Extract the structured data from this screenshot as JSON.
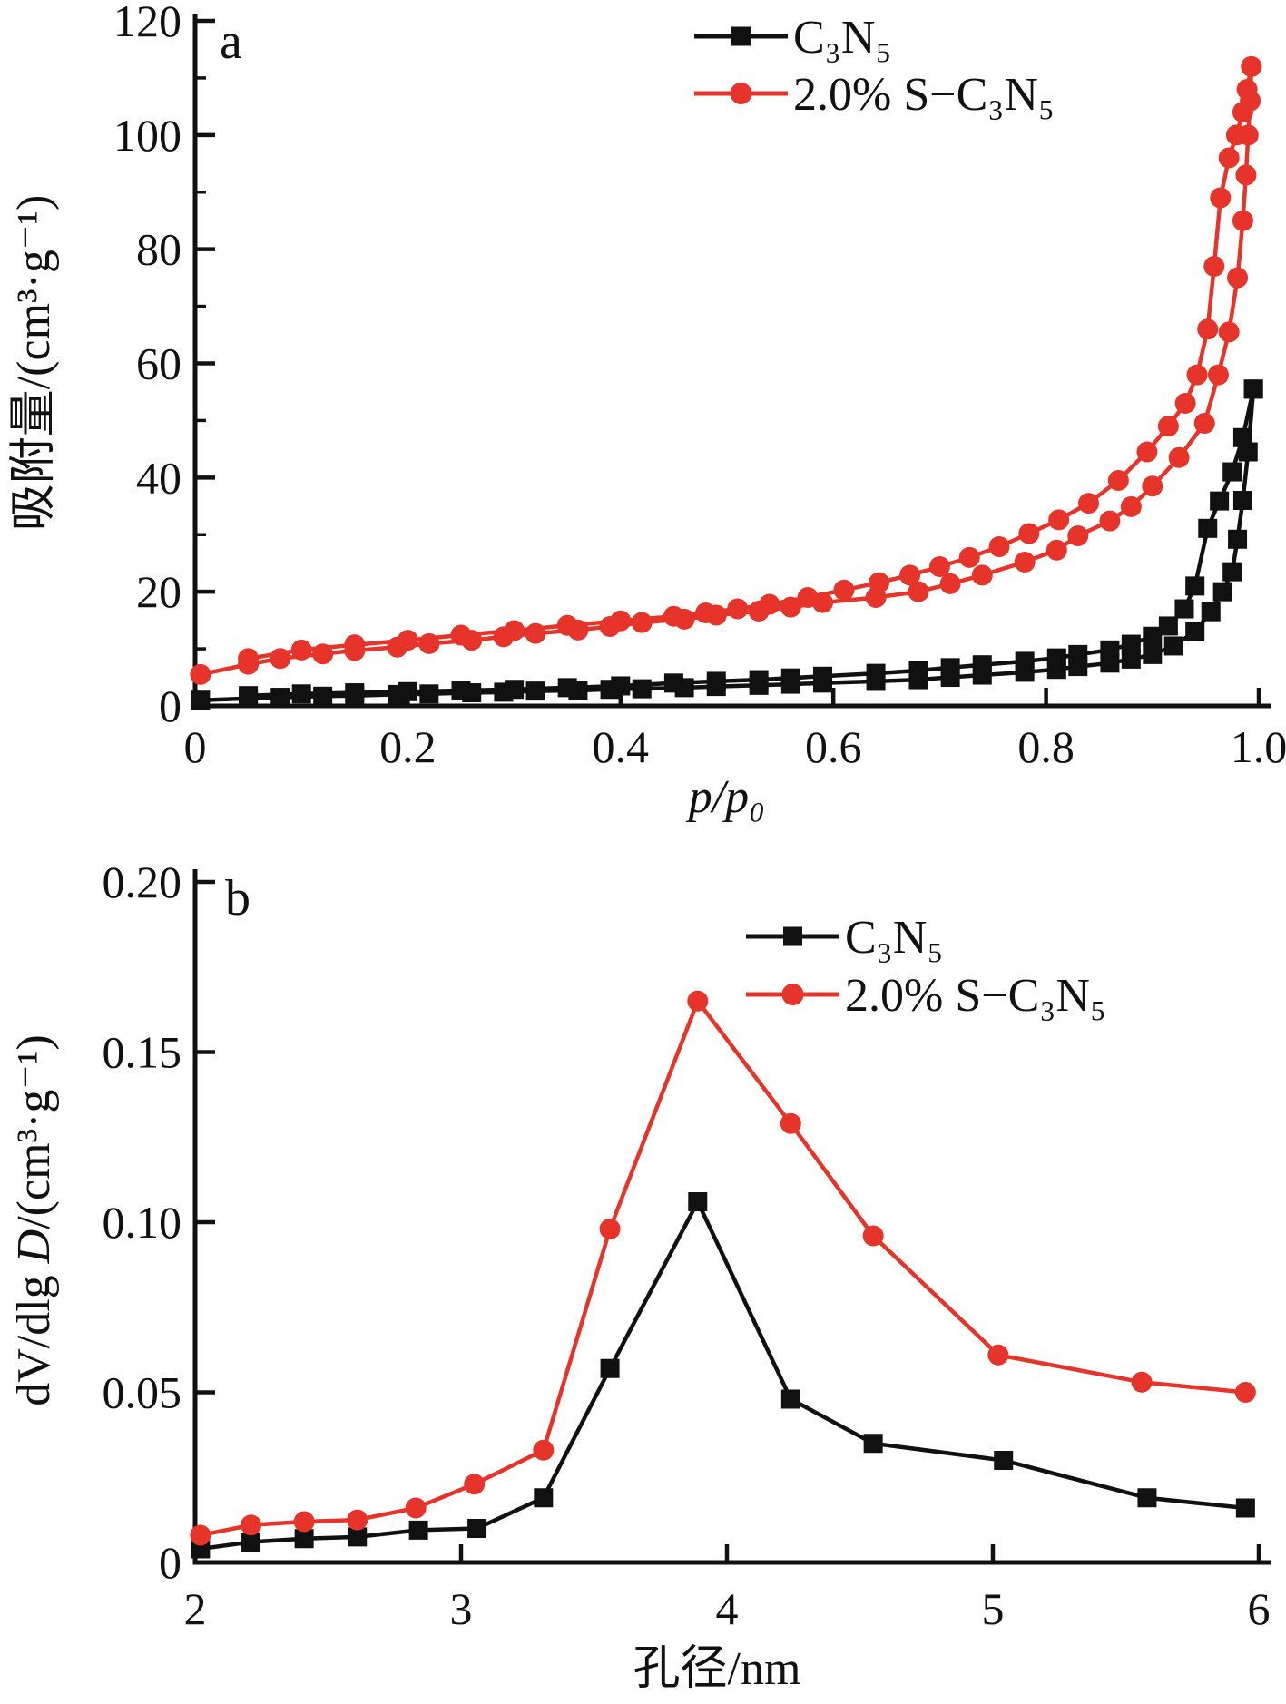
{
  "figure": {
    "background": "#ffffff",
    "black_color": "#111111",
    "red_color": "#e6342a",
    "panel_a_letter": "a",
    "panel_b_letter": "b",
    "legend": {
      "c3n5_label": "C₃N₅",
      "s_c3n5_label": "2.0% S−C₃N₅"
    }
  },
  "chart_data": [
    {
      "id": "panel-a",
      "type": "line",
      "panel_label": "a",
      "xlabel": "p/p₀",
      "ylabel": "吸附量/(cm³·g⁻¹)",
      "xlim": [
        0,
        1.0
      ],
      "ylim": [
        0,
        120
      ],
      "grid": false,
      "legend_position": "top-right",
      "xticks": [
        0,
        0.2,
        0.4,
        0.6,
        0.8,
        1.0
      ],
      "xtick_labels": [
        "0",
        "0.2",
        "0.4",
        "0.6",
        "0.8",
        "1.0"
      ],
      "yticks": [
        0,
        20,
        40,
        60,
        80,
        100,
        120
      ],
      "ytick_labels": [
        "0",
        "20",
        "40",
        "60",
        "80",
        "100",
        "120"
      ],
      "yminor": [
        10,
        30,
        50,
        70,
        90,
        110
      ],
      "series": [
        {
          "name": "C₃N₅",
          "color": "#111111",
          "marker": "square",
          "adsorption": [
            [
              0.005,
              1.0
            ],
            [
              0.05,
              1.3
            ],
            [
              0.08,
              1.5
            ],
            [
              0.12,
              1.7
            ],
            [
              0.15,
              1.8
            ],
            [
              0.19,
              2.0
            ],
            [
              0.22,
              2.1
            ],
            [
              0.26,
              2.3
            ],
            [
              0.29,
              2.4
            ],
            [
              0.32,
              2.6
            ],
            [
              0.36,
              2.7
            ],
            [
              0.39,
              2.9
            ],
            [
              0.42,
              3.0
            ],
            [
              0.46,
              3.2
            ],
            [
              0.49,
              3.4
            ],
            [
              0.53,
              3.6
            ],
            [
              0.56,
              3.8
            ],
            [
              0.59,
              4.0
            ],
            [
              0.64,
              4.3
            ],
            [
              0.68,
              4.6
            ],
            [
              0.71,
              5.0
            ],
            [
              0.74,
              5.4
            ],
            [
              0.78,
              5.9
            ],
            [
              0.81,
              6.4
            ],
            [
              0.83,
              6.9
            ],
            [
              0.86,
              7.5
            ],
            [
              0.88,
              8.2
            ],
            [
              0.9,
              9.0
            ],
            [
              0.92,
              10.5
            ],
            [
              0.94,
              13.0
            ],
            [
              0.955,
              16.5
            ],
            [
              0.966,
              20.0
            ],
            [
              0.975,
              23.5
            ],
            [
              0.98,
              29.2
            ],
            [
              0.985,
              36.0
            ],
            [
              0.99,
              44.5
            ],
            [
              0.995,
              55.5
            ]
          ],
          "desorption": [
            [
              0.05,
              1.8
            ],
            [
              0.1,
              2.1
            ],
            [
              0.15,
              2.3
            ],
            [
              0.2,
              2.5
            ],
            [
              0.25,
              2.7
            ],
            [
              0.3,
              2.9
            ],
            [
              0.35,
              3.2
            ],
            [
              0.4,
              3.5
            ],
            [
              0.45,
              4.0
            ],
            [
              0.49,
              4.3
            ],
            [
              0.53,
              4.6
            ],
            [
              0.56,
              4.9
            ],
            [
              0.59,
              5.2
            ],
            [
              0.64,
              5.7
            ],
            [
              0.68,
              6.2
            ],
            [
              0.71,
              6.7
            ],
            [
              0.74,
              7.2
            ],
            [
              0.78,
              7.8
            ],
            [
              0.81,
              8.4
            ],
            [
              0.83,
              9.0
            ],
            [
              0.86,
              9.8
            ],
            [
              0.88,
              10.8
            ],
            [
              0.9,
              12.2
            ],
            [
              0.915,
              14.0
            ],
            [
              0.93,
              17.0
            ],
            [
              0.94,
              21.0
            ],
            [
              0.952,
              31.1
            ],
            [
              0.963,
              35.9
            ],
            [
              0.975,
              41.0
            ],
            [
              0.985,
              47.0
            ],
            [
              0.995,
              55.5
            ]
          ]
        },
        {
          "name": "2.0% S−C₃N₅",
          "color": "#e6342a",
          "marker": "circle",
          "adsorption": [
            [
              0.005,
              5.5
            ],
            [
              0.05,
              7.3
            ],
            [
              0.08,
              8.3
            ],
            [
              0.12,
              9.1
            ],
            [
              0.15,
              9.7
            ],
            [
              0.19,
              10.3
            ],
            [
              0.22,
              10.9
            ],
            [
              0.26,
              11.5
            ],
            [
              0.29,
              12.1
            ],
            [
              0.32,
              12.7
            ],
            [
              0.36,
              13.3
            ],
            [
              0.39,
              13.9
            ],
            [
              0.42,
              14.6
            ],
            [
              0.46,
              15.2
            ],
            [
              0.49,
              15.9
            ],
            [
              0.53,
              16.6
            ],
            [
              0.56,
              17.3
            ],
            [
              0.59,
              18.1
            ],
            [
              0.64,
              19.0
            ],
            [
              0.68,
              20.0
            ],
            [
              0.71,
              21.4
            ],
            [
              0.74,
              22.9
            ],
            [
              0.78,
              25.2
            ],
            [
              0.81,
              27.3
            ],
            [
              0.83,
              29.8
            ],
            [
              0.86,
              32.4
            ],
            [
              0.88,
              34.9
            ],
            [
              0.9,
              38.5
            ],
            [
              0.925,
              43.5
            ],
            [
              0.949,
              49.5
            ],
            [
              0.962,
              58.0
            ],
            [
              0.972,
              65.5
            ],
            [
              0.98,
              75.0
            ],
            [
              0.985,
              85.0
            ],
            [
              0.988,
              93.0
            ],
            [
              0.99,
              100.0
            ],
            [
              0.992,
              106.0
            ],
            [
              0.993,
              112.0
            ]
          ],
          "desorption": [
            [
              0.05,
              8.3
            ],
            [
              0.1,
              9.8
            ],
            [
              0.15,
              10.7
            ],
            [
              0.2,
              11.5
            ],
            [
              0.25,
              12.4
            ],
            [
              0.3,
              13.2
            ],
            [
              0.35,
              14.1
            ],
            [
              0.4,
              14.9
            ],
            [
              0.45,
              15.7
            ],
            [
              0.48,
              16.3
            ],
            [
              0.51,
              17.0
            ],
            [
              0.54,
              17.8
            ],
            [
              0.576,
              19.0
            ],
            [
              0.61,
              20.3
            ],
            [
              0.643,
              21.6
            ],
            [
              0.672,
              22.9
            ],
            [
              0.7,
              24.4
            ],
            [
              0.728,
              26.0
            ],
            [
              0.756,
              27.9
            ],
            [
              0.784,
              30.2
            ],
            [
              0.812,
              32.6
            ],
            [
              0.84,
              35.5
            ],
            [
              0.868,
              39.5
            ],
            [
              0.895,
              44.5
            ],
            [
              0.915,
              49.0
            ],
            [
              0.931,
              53.0
            ],
            [
              0.942,
              58.0
            ],
            [
              0.952,
              66.0
            ],
            [
              0.958,
              77.0
            ],
            [
              0.964,
              89.0
            ],
            [
              0.972,
              96.0
            ],
            [
              0.979,
              100.0
            ],
            [
              0.985,
              104.0
            ],
            [
              0.989,
              108.0
            ],
            [
              0.993,
              112.0
            ]
          ]
        }
      ]
    },
    {
      "id": "panel-b",
      "type": "line",
      "panel_label": "b",
      "xlabel": "孔径/nm",
      "ylabel": "dV/dlg D/(cm³·g⁻¹)",
      "ylabel_parts": [
        {
          "text": "dV/dlg ",
          "italic": false
        },
        {
          "text": "D",
          "italic": true
        },
        {
          "text": "/(cm³·g⁻¹)",
          "italic": false
        }
      ],
      "xlim": [
        2,
        6
      ],
      "ylim": [
        0,
        0.2
      ],
      "grid": false,
      "legend_position": "top-right",
      "xticks": [
        2,
        3,
        4,
        5,
        6
      ],
      "xtick_labels": [
        "2",
        "3",
        "4",
        "5",
        "6"
      ],
      "yticks": [
        0,
        0.05,
        0.1,
        0.15,
        0.2
      ],
      "ytick_labels": [
        "0",
        "0.05",
        "0.10",
        "0.15",
        "0.20"
      ],
      "series": [
        {
          "name": "C₃N₅",
          "color": "#111111",
          "marker": "square",
          "points": [
            [
              2.02,
              0.004
            ],
            [
              2.21,
              0.006
            ],
            [
              2.41,
              0.007
            ],
            [
              2.61,
              0.0075
            ],
            [
              2.84,
              0.0095
            ],
            [
              3.06,
              0.01
            ],
            [
              3.31,
              0.019
            ],
            [
              3.56,
              0.057
            ],
            [
              3.89,
              0.106
            ],
            [
              4.24,
              0.048
            ],
            [
              4.55,
              0.035
            ],
            [
              5.04,
              0.03
            ],
            [
              5.58,
              0.019
            ],
            [
              5.95,
              0.016
            ]
          ]
        },
        {
          "name": "2.0% S−C₃N₅",
          "color": "#e6342a",
          "marker": "circle",
          "points": [
            [
              2.02,
              0.008
            ],
            [
              2.21,
              0.011
            ],
            [
              2.41,
              0.012
            ],
            [
              2.61,
              0.0125
            ],
            [
              2.83,
              0.016
            ],
            [
              3.05,
              0.023
            ],
            [
              3.31,
              0.033
            ],
            [
              3.56,
              0.098
            ],
            [
              3.89,
              0.165
            ],
            [
              4.24,
              0.129
            ],
            [
              4.55,
              0.096
            ],
            [
              5.02,
              0.061
            ],
            [
              5.56,
              0.053
            ],
            [
              5.95,
              0.05
            ]
          ]
        }
      ]
    }
  ]
}
